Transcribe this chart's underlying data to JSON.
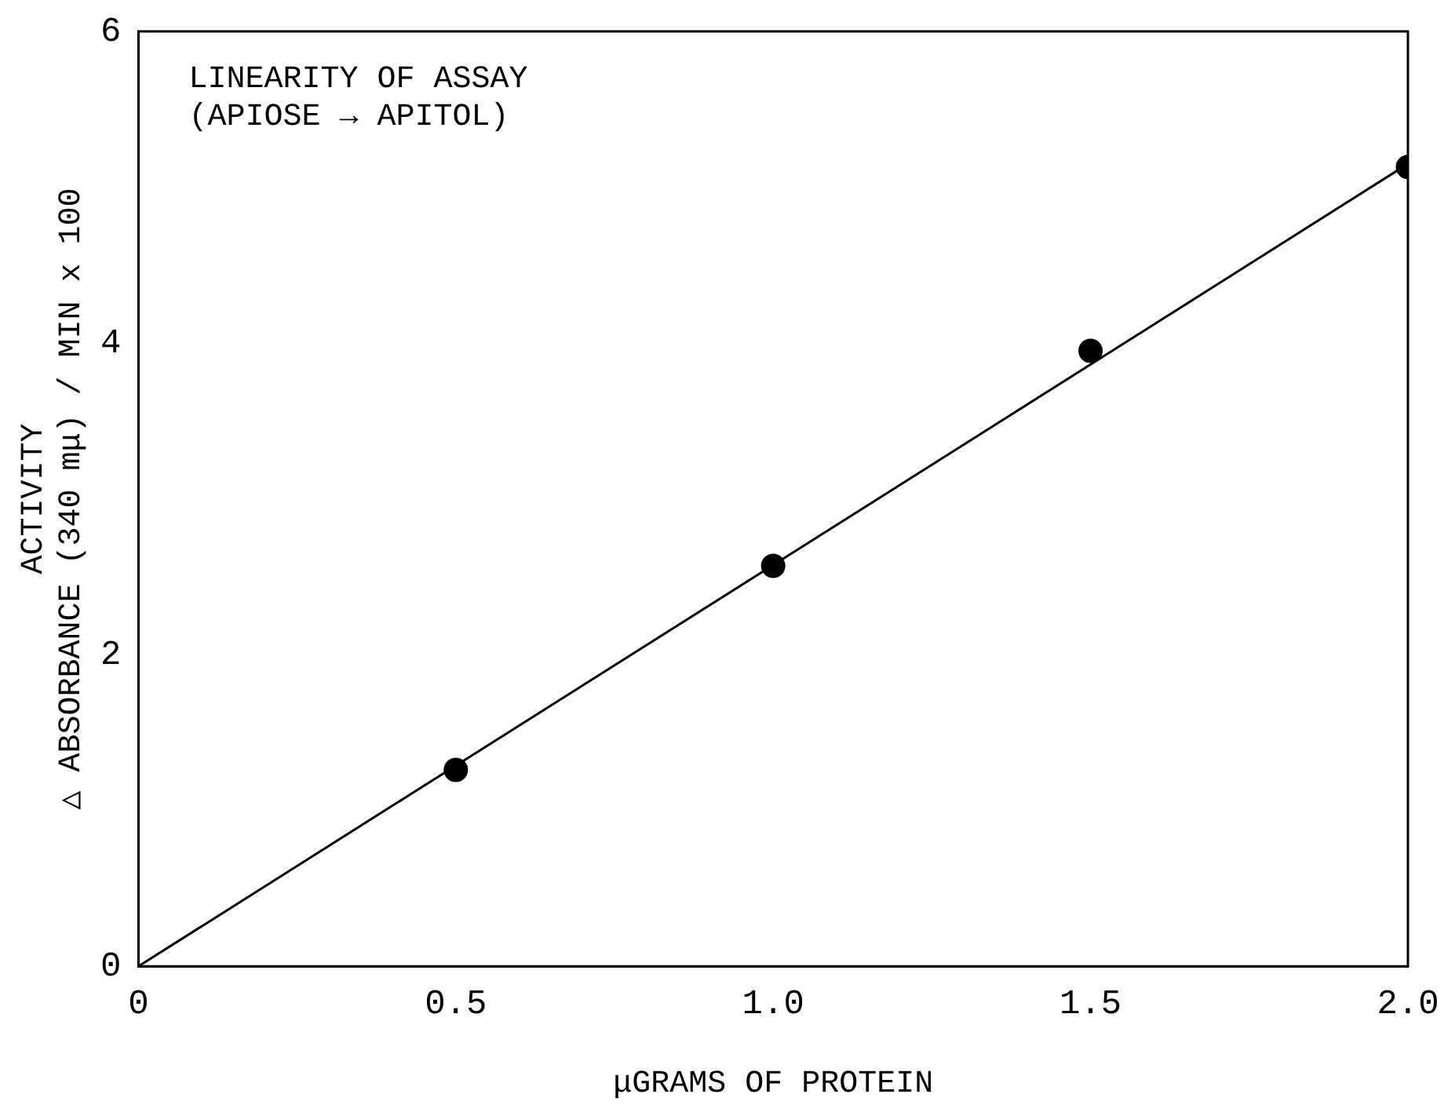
{
  "chart_data": {
    "type": "scatter",
    "xlabel": "μGRAMS OF PROTEIN",
    "ylabel": "ACTIVITY\n△ ABSORBANCE (340 mμ) / MIN x 100",
    "annotations": [
      "LINEARITY OF ASSAY\n(APIOSE → APITOL)"
    ],
    "series": [
      {
        "type": "scatter",
        "color": "#000000",
        "x": [
          0.5,
          1.0,
          1.5,
          2.0
        ],
        "values": [
          1.26,
          2.57,
          3.95,
          5.13
        ],
        "marker": "circle"
      },
      {
        "type": "line",
        "color": "#000000",
        "x": [
          0,
          2.0
        ],
        "values": [
          0,
          5.15
        ],
        "marker": "none"
      }
    ],
    "xlim": [
      0,
      2.0
    ],
    "xticks": [
      0,
      {
        "value": 0.5,
        "label": "0.5"
      },
      {
        "value": 1,
        "label": "1.0"
      },
      {
        "value": 1.5,
        "label": "1.5"
      },
      {
        "value": 2,
        "label": "2.0"
      }
    ],
    "ylim": [
      0,
      6
    ],
    "yticks": [
      0,
      2,
      4,
      6
    ],
    "grid": false,
    "legend": false
  }
}
